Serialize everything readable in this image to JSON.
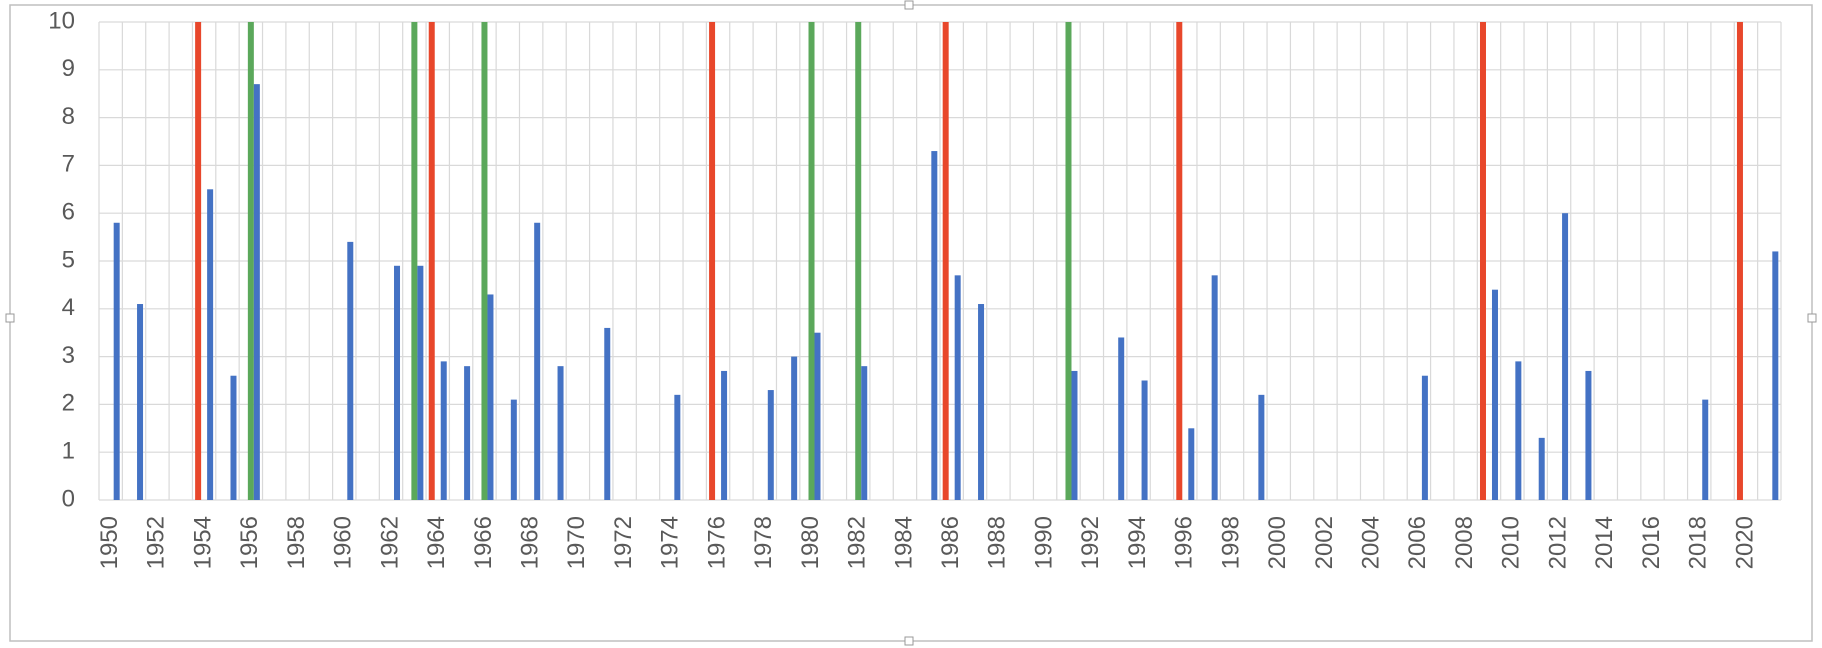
{
  "chart_data": {
    "type": "bar",
    "categories": [
      "1950",
      null,
      "1952",
      null,
      "1954",
      null,
      "1956",
      null,
      "1958",
      null,
      "1960",
      null,
      "1962",
      null,
      "1964",
      null,
      "1966",
      null,
      "1968",
      null,
      "1970",
      null,
      "1972",
      null,
      "1974",
      null,
      "1976",
      null,
      "1978",
      null,
      "1980",
      null,
      "1982",
      null,
      "1984",
      null,
      "1986",
      null,
      "1988",
      null,
      "1990",
      null,
      "1992",
      null,
      "1994",
      null,
      "1996",
      null,
      "1998",
      null,
      "2000",
      null,
      "2002",
      null,
      "2004",
      null,
      "2006",
      null,
      "2008",
      null,
      "2010",
      null,
      "2012",
      null,
      "2014",
      null,
      "2016",
      null,
      "2018",
      null,
      "2020",
      null
    ],
    "series": [
      {
        "color": "#e8472b",
        "values": [
          null,
          null,
          null,
          null,
          10,
          null,
          null,
          null,
          null,
          null,
          null,
          null,
          null,
          null,
          10,
          null,
          null,
          null,
          null,
          null,
          null,
          null,
          null,
          null,
          null,
          null,
          10,
          null,
          null,
          null,
          null,
          null,
          null,
          null,
          null,
          null,
          10,
          null,
          null,
          null,
          null,
          null,
          null,
          null,
          null,
          null,
          10,
          null,
          null,
          null,
          null,
          null,
          null,
          null,
          null,
          null,
          null,
          null,
          null,
          10,
          null,
          null,
          null,
          null,
          null,
          null,
          null,
          null,
          null,
          null,
          10,
          null
        ]
      },
      {
        "color": "#5ba85b",
        "values": [
          null,
          null,
          null,
          null,
          null,
          null,
          10,
          null,
          null,
          null,
          null,
          null,
          null,
          10,
          null,
          null,
          10,
          null,
          null,
          null,
          null,
          null,
          null,
          null,
          null,
          null,
          null,
          null,
          null,
          null,
          10,
          null,
          10,
          null,
          null,
          null,
          null,
          null,
          null,
          null,
          null,
          10,
          null,
          null,
          null,
          null,
          null,
          null,
          null,
          null,
          null,
          null,
          null,
          null,
          null,
          null,
          null,
          null,
          null,
          null,
          null,
          null,
          null,
          null,
          null,
          null,
          null,
          null,
          null,
          null,
          null,
          null
        ]
      },
      {
        "color": "#4472c4",
        "values": [
          5.8,
          4.1,
          null,
          null,
          6.5,
          2.6,
          8.7,
          null,
          null,
          null,
          5.4,
          null,
          4.9,
          4.9,
          2.9,
          2.8,
          4.3,
          2.1,
          5.8,
          2.8,
          null,
          3.6,
          null,
          null,
          2.2,
          null,
          2.7,
          null,
          2.3,
          3,
          3.5,
          null,
          2.8,
          null,
          null,
          7.3,
          4.7,
          4.1,
          null,
          null,
          null,
          2.7,
          null,
          3.4,
          2.5,
          null,
          1.5,
          4.7,
          null,
          2.2,
          null,
          null,
          null,
          null,
          null,
          null,
          2.6,
          null,
          null,
          4.4,
          2.9,
          1.3,
          6,
          2.7,
          null,
          null,
          null,
          null,
          2.1,
          null,
          null,
          5.2
        ]
      }
    ],
    "ylim": [
      0,
      10
    ],
    "yticks": [
      0,
      1,
      2,
      3,
      4,
      5,
      6,
      7,
      8,
      9,
      10
    ],
    "grid": true
  }
}
